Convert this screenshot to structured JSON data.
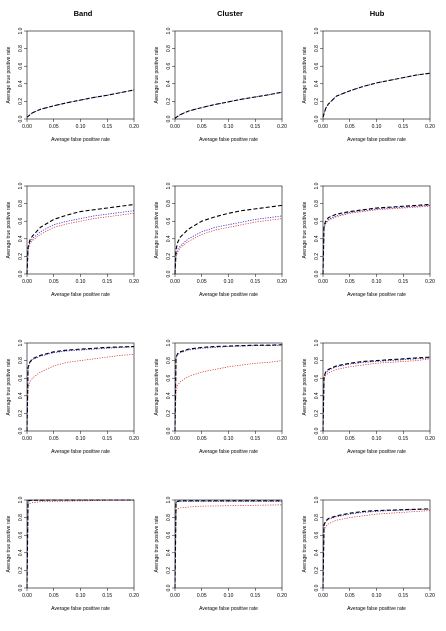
{
  "column_titles": [
    "Band",
    "Cluster",
    "Hub"
  ],
  "colors": {
    "black": "#000000",
    "blue": "#2a2ad9",
    "red": "#e0201c"
  },
  "chart_data": [
    {
      "type": "line",
      "row": 0,
      "col": 0,
      "xlabel": "Average false positive rate",
      "ylabel": "Average true positive rate",
      "xlim": [
        0,
        0.2
      ],
      "ylim": [
        0,
        1
      ],
      "xticks": [
        "0.00",
        "0.05",
        "0.10",
        "0.15",
        "0.20"
      ],
      "yticks": [
        "0.0",
        "0.2",
        "0.4",
        "0.6",
        "0.8",
        "1.0"
      ],
      "grid": false,
      "x": [
        0,
        0.01,
        0.025,
        0.05,
        0.075,
        0.1,
        0.125,
        0.15,
        0.175,
        0.2
      ],
      "series": [
        {
          "color": "black",
          "dash": "dashed",
          "values": [
            0.02,
            0.07,
            0.11,
            0.15,
            0.185,
            0.215,
            0.245,
            0.27,
            0.3,
            0.33
          ]
        },
        {
          "color": "blue",
          "dash": "dotted",
          "values": [
            0.02,
            0.07,
            0.11,
            0.15,
            0.185,
            0.215,
            0.245,
            0.27,
            0.3,
            0.33
          ]
        },
        {
          "color": "red",
          "dash": "dotted",
          "values": [
            0.02,
            0.07,
            0.11,
            0.15,
            0.185,
            0.215,
            0.245,
            0.27,
            0.3,
            0.33
          ]
        }
      ]
    },
    {
      "type": "line",
      "row": 0,
      "col": 1,
      "xlabel": "Average false positive rate",
      "ylabel": "Average true positive rate",
      "xlim": [
        0,
        0.2
      ],
      "ylim": [
        0,
        1
      ],
      "xticks": [
        "0.00",
        "0.05",
        "0.10",
        "0.15",
        "0.20"
      ],
      "yticks": [
        "0.0",
        "0.2",
        "0.4",
        "0.6",
        "0.8",
        "1.0"
      ],
      "grid": false,
      "x": [
        0,
        0.01,
        0.025,
        0.05,
        0.075,
        0.1,
        0.125,
        0.15,
        0.175,
        0.2
      ],
      "series": [
        {
          "color": "black",
          "dash": "dashed",
          "values": [
            0.01,
            0.05,
            0.09,
            0.13,
            0.165,
            0.195,
            0.225,
            0.25,
            0.275,
            0.305
          ]
        },
        {
          "color": "blue",
          "dash": "dotted",
          "values": [
            0.01,
            0.05,
            0.09,
            0.13,
            0.165,
            0.195,
            0.225,
            0.25,
            0.275,
            0.305
          ]
        },
        {
          "color": "red",
          "dash": "dotted",
          "values": [
            0.01,
            0.05,
            0.09,
            0.13,
            0.165,
            0.195,
            0.225,
            0.25,
            0.275,
            0.305
          ]
        }
      ]
    },
    {
      "type": "line",
      "row": 0,
      "col": 2,
      "xlabel": "Average false positive rate",
      "ylabel": "Average true positive rate",
      "xlim": [
        0,
        0.2
      ],
      "ylim": [
        0,
        1
      ],
      "xticks": [
        "0.00",
        "0.05",
        "0.10",
        "0.15",
        "0.20"
      ],
      "yticks": [
        "0.0",
        "0.2",
        "0.4",
        "0.6",
        "0.8",
        "1.0"
      ],
      "grid": false,
      "x": [
        0,
        0.005,
        0.01,
        0.025,
        0.05,
        0.075,
        0.1,
        0.125,
        0.15,
        0.175,
        0.2
      ],
      "series": [
        {
          "color": "black",
          "dash": "dashed",
          "values": [
            0.02,
            0.12,
            0.17,
            0.26,
            0.32,
            0.37,
            0.41,
            0.44,
            0.47,
            0.5,
            0.52
          ]
        },
        {
          "color": "blue",
          "dash": "dotted",
          "values": [
            0.02,
            0.12,
            0.17,
            0.26,
            0.32,
            0.37,
            0.41,
            0.44,
            0.47,
            0.5,
            0.52
          ]
        },
        {
          "color": "red",
          "dash": "dotted",
          "values": [
            0.02,
            0.12,
            0.17,
            0.26,
            0.32,
            0.37,
            0.41,
            0.44,
            0.47,
            0.5,
            0.52
          ]
        }
      ]
    },
    {
      "type": "line",
      "row": 1,
      "col": 0,
      "xlabel": "Average false positive rate",
      "ylabel": "Average true positive rate",
      "xlim": [
        0,
        0.2
      ],
      "ylim": [
        0,
        1
      ],
      "xticks": [
        "0.00",
        "0.05",
        "0.10",
        "0.15",
        "0.20"
      ],
      "yticks": [
        "0.0",
        "0.2",
        "0.4",
        "0.6",
        "0.8",
        "1.0"
      ],
      "grid": false,
      "x": [
        0,
        0.002,
        0.005,
        0.01,
        0.025,
        0.05,
        0.075,
        0.1,
        0.125,
        0.15,
        0.175,
        0.2
      ],
      "series": [
        {
          "color": "black",
          "dash": "dashed",
          "values": [
            0,
            0.3,
            0.38,
            0.43,
            0.53,
            0.62,
            0.67,
            0.71,
            0.73,
            0.75,
            0.77,
            0.79
          ]
        },
        {
          "color": "blue",
          "dash": "dotted",
          "values": [
            0,
            0.28,
            0.36,
            0.4,
            0.48,
            0.56,
            0.6,
            0.63,
            0.66,
            0.68,
            0.7,
            0.72
          ]
        },
        {
          "color": "red",
          "dash": "dotted",
          "values": [
            0,
            0.27,
            0.34,
            0.38,
            0.45,
            0.53,
            0.57,
            0.6,
            0.63,
            0.65,
            0.67,
            0.69
          ]
        }
      ]
    },
    {
      "type": "line",
      "row": 1,
      "col": 1,
      "xlabel": "Average false positive rate",
      "ylabel": "Average true positive rate",
      "xlim": [
        0,
        0.2
      ],
      "ylim": [
        0,
        1
      ],
      "xticks": [
        "0.00",
        "0.05",
        "0.10",
        "0.15",
        "0.20"
      ],
      "yticks": [
        "0.0",
        "0.2",
        "0.4",
        "0.6",
        "0.8",
        "1.0"
      ],
      "grid": false,
      "x": [
        0,
        0.002,
        0.005,
        0.01,
        0.025,
        0.05,
        0.075,
        0.1,
        0.125,
        0.15,
        0.175,
        0.2
      ],
      "series": [
        {
          "color": "black",
          "dash": "dashed",
          "values": [
            0,
            0.28,
            0.36,
            0.42,
            0.51,
            0.6,
            0.65,
            0.69,
            0.72,
            0.74,
            0.76,
            0.78
          ]
        },
        {
          "color": "blue",
          "dash": "dotted",
          "values": [
            0,
            0.22,
            0.28,
            0.32,
            0.4,
            0.48,
            0.53,
            0.56,
            0.59,
            0.62,
            0.64,
            0.66
          ]
        },
        {
          "color": "red",
          "dash": "dotted",
          "values": [
            0,
            0.2,
            0.25,
            0.3,
            0.37,
            0.45,
            0.5,
            0.53,
            0.56,
            0.59,
            0.61,
            0.63
          ]
        }
      ]
    },
    {
      "type": "line",
      "row": 1,
      "col": 2,
      "xlabel": "Average false positive rate",
      "ylabel": "Average true positive rate",
      "xlim": [
        0,
        0.2
      ],
      "ylim": [
        0,
        1
      ],
      "xticks": [
        "0.00",
        "0.05",
        "0.10",
        "0.15",
        "0.20"
      ],
      "yticks": [
        "0.0",
        "0.2",
        "0.4",
        "0.6",
        "0.8",
        "1.0"
      ],
      "grid": false,
      "x": [
        0,
        0.002,
        0.005,
        0.01,
        0.025,
        0.05,
        0.075,
        0.1,
        0.125,
        0.15,
        0.175,
        0.2
      ],
      "series": [
        {
          "color": "black",
          "dash": "dashed",
          "values": [
            0,
            0.55,
            0.6,
            0.64,
            0.68,
            0.71,
            0.73,
            0.75,
            0.76,
            0.77,
            0.78,
            0.79
          ]
        },
        {
          "color": "blue",
          "dash": "dotted",
          "values": [
            0,
            0.53,
            0.58,
            0.62,
            0.66,
            0.7,
            0.72,
            0.74,
            0.75,
            0.76,
            0.77,
            0.78
          ]
        },
        {
          "color": "red",
          "dash": "dotted",
          "values": [
            0,
            0.52,
            0.57,
            0.61,
            0.65,
            0.69,
            0.71,
            0.73,
            0.74,
            0.75,
            0.76,
            0.77
          ]
        }
      ]
    },
    {
      "type": "line",
      "row": 2,
      "col": 0,
      "xlabel": "Average false positive rate",
      "ylabel": "Average true positive rate",
      "xlim": [
        0,
        0.2
      ],
      "ylim": [
        0,
        1
      ],
      "xticks": [
        "0.00",
        "0.05",
        "0.10",
        "0.15",
        "0.20"
      ],
      "yticks": [
        "0.0",
        "0.2",
        "0.4",
        "0.6",
        "0.8",
        "1.0"
      ],
      "grid": false,
      "x": [
        0,
        0.002,
        0.005,
        0.01,
        0.025,
        0.05,
        0.075,
        0.1,
        0.125,
        0.15,
        0.175,
        0.2
      ],
      "series": [
        {
          "color": "black",
          "dash": "dashed",
          "values": [
            0,
            0.72,
            0.78,
            0.82,
            0.86,
            0.9,
            0.92,
            0.93,
            0.94,
            0.95,
            0.955,
            0.96
          ]
        },
        {
          "color": "blue",
          "dash": "dotted",
          "values": [
            0,
            0.71,
            0.77,
            0.81,
            0.85,
            0.89,
            0.91,
            0.92,
            0.93,
            0.94,
            0.95,
            0.955
          ]
        },
        {
          "color": "red",
          "dash": "dotted",
          "values": [
            0,
            0.48,
            0.55,
            0.6,
            0.67,
            0.74,
            0.78,
            0.8,
            0.82,
            0.84,
            0.86,
            0.87
          ]
        }
      ]
    },
    {
      "type": "line",
      "row": 2,
      "col": 1,
      "xlabel": "Average false positive rate",
      "ylabel": "Average true positive rate",
      "xlim": [
        0,
        0.2
      ],
      "ylim": [
        0,
        1
      ],
      "xticks": [
        "0.00",
        "0.05",
        "0.10",
        "0.15",
        "0.20"
      ],
      "yticks": [
        "0.0",
        "0.2",
        "0.4",
        "0.6",
        "0.8",
        "1.0"
      ],
      "grid": false,
      "x": [
        0,
        0.002,
        0.005,
        0.01,
        0.025,
        0.05,
        0.075,
        0.1,
        0.125,
        0.15,
        0.175,
        0.2
      ],
      "series": [
        {
          "color": "black",
          "dash": "dashed",
          "values": [
            0,
            0.84,
            0.88,
            0.9,
            0.93,
            0.95,
            0.96,
            0.965,
            0.97,
            0.975,
            0.975,
            0.98
          ]
        },
        {
          "color": "blue",
          "dash": "dotted",
          "values": [
            0,
            0.83,
            0.87,
            0.89,
            0.92,
            0.94,
            0.95,
            0.96,
            0.965,
            0.97,
            0.97,
            0.975
          ]
        },
        {
          "color": "red",
          "dash": "dotted",
          "values": [
            0,
            0.45,
            0.52,
            0.56,
            0.62,
            0.67,
            0.7,
            0.73,
            0.75,
            0.77,
            0.78,
            0.8
          ]
        }
      ]
    },
    {
      "type": "line",
      "row": 2,
      "col": 2,
      "xlabel": "Average false positive rate",
      "ylabel": "Average true positive rate",
      "xlim": [
        0,
        0.2
      ],
      "ylim": [
        0,
        1
      ],
      "xticks": [
        "0.00",
        "0.05",
        "0.10",
        "0.15",
        "0.20"
      ],
      "yticks": [
        "0.0",
        "0.2",
        "0.4",
        "0.6",
        "0.8",
        "1.0"
      ],
      "grid": false,
      "x": [
        0,
        0.002,
        0.005,
        0.01,
        0.025,
        0.05,
        0.075,
        0.1,
        0.125,
        0.15,
        0.175,
        0.2
      ],
      "series": [
        {
          "color": "black",
          "dash": "dashed",
          "values": [
            0,
            0.62,
            0.67,
            0.7,
            0.74,
            0.77,
            0.79,
            0.8,
            0.81,
            0.82,
            0.83,
            0.84
          ]
        },
        {
          "color": "blue",
          "dash": "dotted",
          "values": [
            0,
            0.61,
            0.66,
            0.69,
            0.73,
            0.76,
            0.78,
            0.79,
            0.8,
            0.81,
            0.82,
            0.83
          ]
        },
        {
          "color": "red",
          "dash": "dotted",
          "values": [
            0,
            0.58,
            0.63,
            0.66,
            0.7,
            0.73,
            0.75,
            0.77,
            0.78,
            0.79,
            0.8,
            0.82
          ]
        }
      ]
    },
    {
      "type": "line",
      "row": 3,
      "col": 0,
      "xlabel": "Average false positive rate",
      "ylabel": "Average true positive rate",
      "xlim": [
        0,
        0.2
      ],
      "ylim": [
        0,
        1
      ],
      "xticks": [
        "0.00",
        "0.05",
        "0.10",
        "0.15",
        "0.20"
      ],
      "yticks": [
        "0.0",
        "0.2",
        "0.4",
        "0.6",
        "0.8",
        "1.0"
      ],
      "grid": false,
      "x": [
        0,
        0.002,
        0.005,
        0.01,
        0.025,
        0.05,
        0.1,
        0.15,
        0.2
      ],
      "series": [
        {
          "color": "black",
          "dash": "dashed",
          "values": [
            0,
            0.99,
            0.995,
            0.997,
            0.998,
            0.999,
            1,
            1,
            1
          ]
        },
        {
          "color": "blue",
          "dash": "dotted",
          "values": [
            0,
            0.98,
            0.99,
            0.994,
            0.996,
            0.998,
            0.999,
            1,
            1
          ]
        },
        {
          "color": "red",
          "dash": "dotted",
          "values": [
            0,
            0.94,
            0.96,
            0.97,
            0.98,
            0.985,
            0.99,
            0.995,
            0.995
          ]
        }
      ]
    },
    {
      "type": "line",
      "row": 3,
      "col": 1,
      "xlabel": "Average false positive rate",
      "ylabel": "Average true positive rate",
      "xlim": [
        0,
        0.2
      ],
      "ylim": [
        0,
        1
      ],
      "xticks": [
        "0.00",
        "0.05",
        "0.10",
        "0.15",
        "0.20"
      ],
      "yticks": [
        "0.0",
        "0.2",
        "0.4",
        "0.6",
        "0.8",
        "1.0"
      ],
      "grid": false,
      "x": [
        0,
        0.002,
        0.005,
        0.01,
        0.025,
        0.05,
        0.1,
        0.15,
        0.2
      ],
      "series": [
        {
          "color": "black",
          "dash": "dashed",
          "values": [
            0,
            0.98,
            0.985,
            0.99,
            0.99,
            0.99,
            0.99,
            0.99,
            0.99
          ]
        },
        {
          "color": "blue",
          "dash": "dotted",
          "values": [
            0,
            0.97,
            0.98,
            0.985,
            0.985,
            0.985,
            0.985,
            0.985,
            0.985
          ]
        },
        {
          "color": "red",
          "dash": "dotted",
          "values": [
            0,
            0.88,
            0.9,
            0.91,
            0.92,
            0.93,
            0.935,
            0.94,
            0.945
          ]
        }
      ]
    },
    {
      "type": "line",
      "row": 3,
      "col": 2,
      "xlabel": "Average false positive rate",
      "ylabel": "Average true positive rate",
      "xlim": [
        0,
        0.2
      ],
      "ylim": [
        0,
        1
      ],
      "xticks": [
        "0.00",
        "0.05",
        "0.10",
        "0.15",
        "0.20"
      ],
      "yticks": [
        "0.0",
        "0.2",
        "0.4",
        "0.6",
        "0.8",
        "1.0"
      ],
      "grid": false,
      "x": [
        0,
        0.002,
        0.005,
        0.01,
        0.025,
        0.05,
        0.075,
        0.1,
        0.125,
        0.15,
        0.175,
        0.2
      ],
      "series": [
        {
          "color": "black",
          "dash": "dashed",
          "values": [
            0,
            0.72,
            0.76,
            0.79,
            0.82,
            0.85,
            0.87,
            0.88,
            0.885,
            0.89,
            0.895,
            0.9
          ]
        },
        {
          "color": "blue",
          "dash": "dotted",
          "values": [
            0,
            0.71,
            0.75,
            0.78,
            0.81,
            0.84,
            0.86,
            0.87,
            0.88,
            0.885,
            0.89,
            0.895
          ]
        },
        {
          "color": "red",
          "dash": "dotted",
          "values": [
            0,
            0.66,
            0.7,
            0.73,
            0.77,
            0.8,
            0.82,
            0.84,
            0.85,
            0.86,
            0.87,
            0.88
          ]
        }
      ]
    }
  ]
}
